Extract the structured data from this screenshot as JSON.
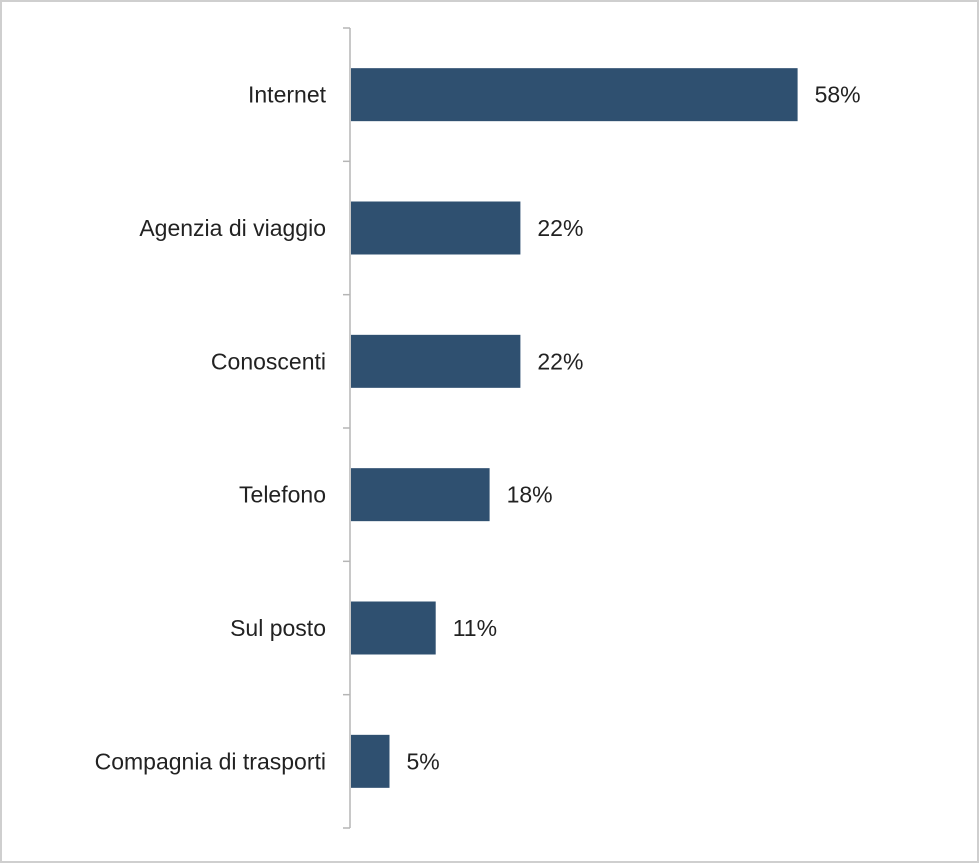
{
  "chart_data": {
    "type": "bar",
    "orientation": "horizontal",
    "categories": [
      "Internet",
      "Agenzia di viaggio",
      "Conoscenti",
      "Telefono",
      "Sul posto",
      "Compagnia di trasporti"
    ],
    "values": [
      58,
      22,
      22,
      18,
      11,
      5
    ],
    "value_labels": [
      "58%",
      "22%",
      "22%",
      "18%",
      "11%",
      "5%"
    ],
    "unit": "%",
    "xlim": [
      0,
      100
    ],
    "grid": false,
    "legend": "none",
    "bar_color": "#2f5070",
    "title": "",
    "xlabel": "",
    "ylabel": ""
  }
}
